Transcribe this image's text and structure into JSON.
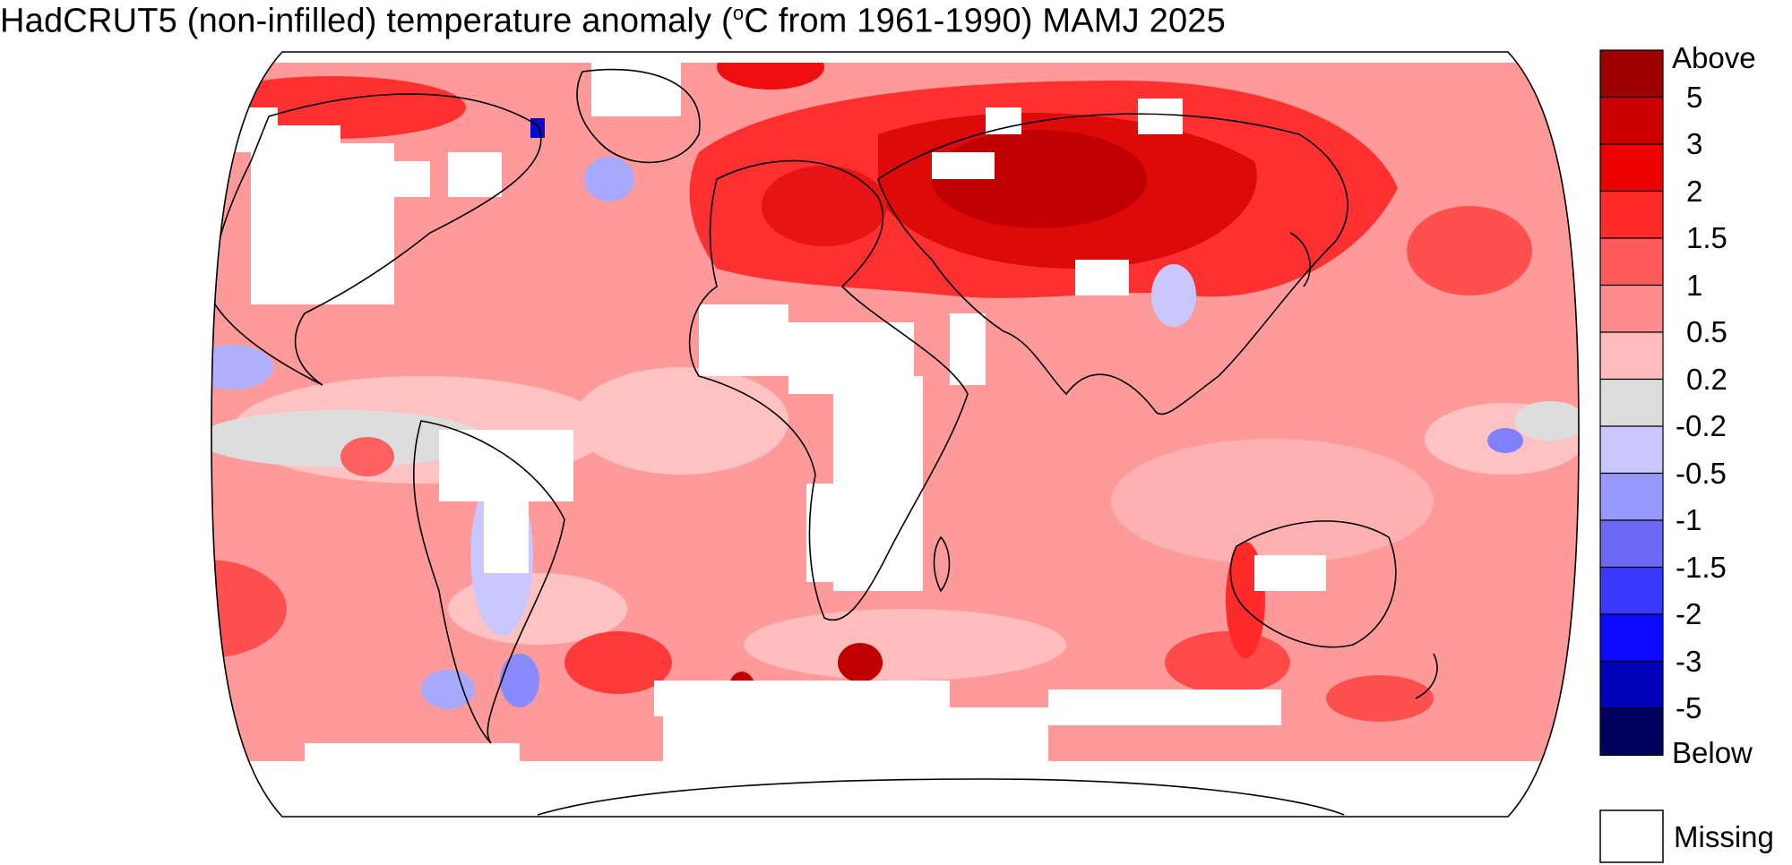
{
  "title": {
    "main": "HadCRUT5 (non-infilled) temperature anomaly (",
    "deg": "o",
    "after": "C from 1961-1990) MAMJ 2025"
  },
  "legend": {
    "labels": [
      "Above",
      "5",
      "3",
      "2",
      "1.5",
      "1",
      "0.5",
      "0.2",
      "-0.2",
      "-0.5",
      "-1",
      "-1.5",
      "-2",
      "-3",
      "-5",
      "Below"
    ],
    "colors": [
      "#9e0000",
      "#cc0000",
      "#ee0000",
      "#ff2a2a",
      "#ff5a5a",
      "#ff8a8a",
      "#ffbcbc",
      "#dcdcdc",
      "#c8c8ff",
      "#9898ff",
      "#6a6af6",
      "#3a3aff",
      "#0a0aff",
      "#0000b8",
      "#000060"
    ],
    "missing_label": "Missing",
    "missing_color": "#ffffff"
  },
  "map": {
    "projection": "Robinson",
    "background_anomaly_color": "#ff9999",
    "missing_color": "#ffffff",
    "coastline_color": "#000000"
  }
}
